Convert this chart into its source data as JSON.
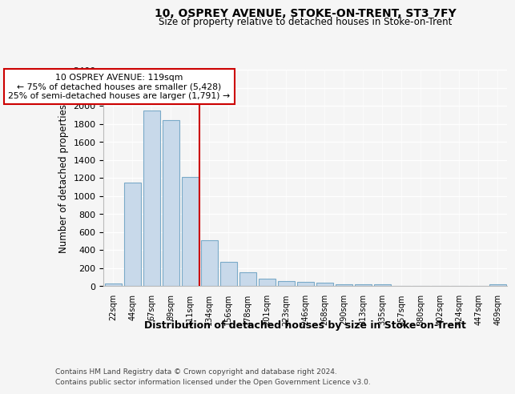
{
  "title": "10, OSPREY AVENUE, STOKE-ON-TRENT, ST3 7FY",
  "subtitle": "Size of property relative to detached houses in Stoke-on-Trent",
  "xlabel": "Distribution of detached houses by size in Stoke-on-Trent",
  "ylabel": "Number of detached properties",
  "categories": [
    "22sqm",
    "44sqm",
    "67sqm",
    "89sqm",
    "111sqm",
    "134sqm",
    "156sqm",
    "178sqm",
    "201sqm",
    "223sqm",
    "246sqm",
    "268sqm",
    "290sqm",
    "313sqm",
    "335sqm",
    "357sqm",
    "380sqm",
    "402sqm",
    "424sqm",
    "447sqm",
    "469sqm"
  ],
  "values": [
    30,
    1145,
    1950,
    1840,
    1210,
    510,
    265,
    155,
    80,
    50,
    45,
    40,
    20,
    20,
    15,
    0,
    0,
    0,
    0,
    0,
    20
  ],
  "bar_color": "#c8d9ea",
  "bar_edge_color": "#7aaac8",
  "vline_x_index": 4.5,
  "vline_color": "#cc0000",
  "annotation_text": "10 OSPREY AVENUE: 119sqm\n← 75% of detached houses are smaller (5,428)\n25% of semi-detached houses are larger (1,791) →",
  "annotation_box_facecolor": "#ffffff",
  "annotation_box_edgecolor": "#cc0000",
  "ylim": [
    0,
    2400
  ],
  "yticks": [
    0,
    200,
    400,
    600,
    800,
    1000,
    1200,
    1400,
    1600,
    1800,
    2000,
    2200,
    2400
  ],
  "footer_line1": "Contains HM Land Registry data © Crown copyright and database right 2024.",
  "footer_line2": "Contains public sector information licensed under the Open Government Licence v3.0.",
  "bg_color": "#f5f5f5"
}
